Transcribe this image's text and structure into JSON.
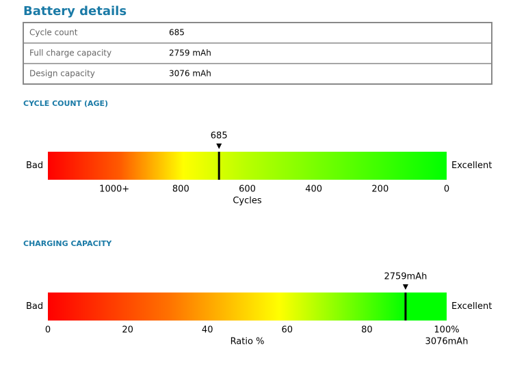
{
  "title": "Battery details",
  "table": {
    "rows": [
      [
        "Cycle count",
        "685"
      ],
      [
        "Full charge capacity",
        "2759 mAh"
      ],
      [
        "Design capacity",
        "3076 mAh"
      ]
    ]
  },
  "gauges": [
    {
      "heading": "CYCLE COUNT (AGE)",
      "left_label": "Bad",
      "right_label": "Excellent",
      "marker": 685,
      "xlim": [
        1200,
        0
      ],
      "xticks": [
        {
          "value": 1000,
          "label": "1000+"
        },
        800,
        600,
        400,
        200,
        0
      ],
      "axis_label": "Cycles"
    },
    {
      "heading": "CHARGING CAPACITY",
      "left_label": "Bad",
      "right_label": "Excellent",
      "marker": 2759,
      "marker_label": "2759mAh",
      "full_scale": 3076,
      "full_scale_label": "3076mAh",
      "xlim": [
        0,
        100
      ],
      "xticks": [
        0,
        20,
        40,
        60,
        80,
        {
          "value": 100,
          "label": "100%"
        }
      ],
      "axis_label": "Ratio %"
    }
  ]
}
